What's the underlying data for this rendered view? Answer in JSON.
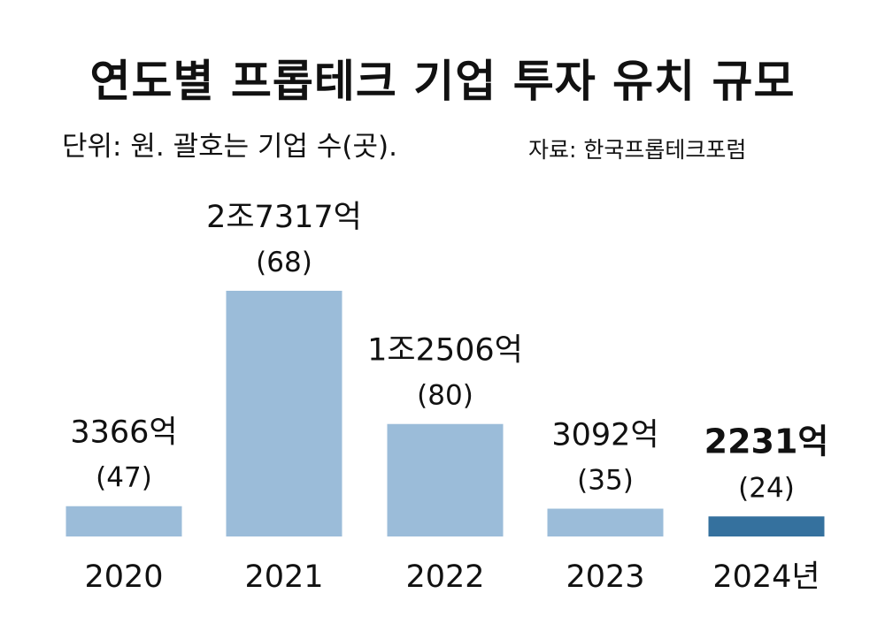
{
  "header": {
    "title": "연도별 프롭테크 기업 투자 유치 규모",
    "subtitle": "단위: 원. 괄호는 기업 수(곳).",
    "source": "자료: 한국프롭테크포럼"
  },
  "colors": {
    "bar": "#9bbcd9",
    "highlight": "#35719e",
    "text": "#111111"
  },
  "chart_data": {
    "type": "bar",
    "title": "연도별 프롭테크 기업 투자 유치 규모",
    "categories": [
      "2020",
      "2021",
      "2022",
      "2023",
      "2024년"
    ],
    "values": [
      3366,
      27317,
      12506,
      3092,
      2231
    ],
    "value_unit": "억 원",
    "value_labels": [
      "3366억",
      "2조7317억",
      "1조2506억",
      "3092억",
      "2231억"
    ],
    "company_counts": [
      "(47)",
      "(68)",
      "(80)",
      "(35)",
      "(24)"
    ],
    "highlight_index": 4,
    "grid": false,
    "legend": "none"
  }
}
